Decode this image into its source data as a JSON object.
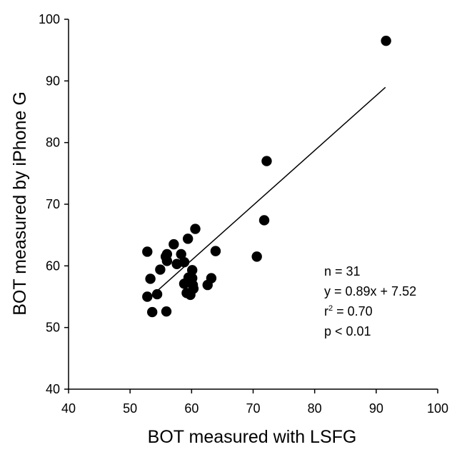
{
  "chart_data": {
    "type": "scatter",
    "xlabel": "BOT measured with LSFG",
    "ylabel": "BOT measured by iPhone G",
    "xlim": [
      40,
      100
    ],
    "ylim": [
      40,
      100
    ],
    "xticks": [
      "40",
      "50",
      "60",
      "70",
      "80",
      "90",
      "100"
    ],
    "yticks": [
      "40",
      "50",
      "60",
      "70",
      "80",
      "90",
      "100"
    ],
    "grid": false,
    "points": [
      {
        "x": 52.8,
        "y": 62.3
      },
      {
        "x": 52.8,
        "y": 55.0
      },
      {
        "x": 53.3,
        "y": 57.9
      },
      {
        "x": 53.6,
        "y": 52.5
      },
      {
        "x": 54.4,
        "y": 55.4
      },
      {
        "x": 54.9,
        "y": 59.4
      },
      {
        "x": 55.8,
        "y": 61.5
      },
      {
        "x": 56.0,
        "y": 61.9
      },
      {
        "x": 55.9,
        "y": 52.6
      },
      {
        "x": 56.0,
        "y": 60.8
      },
      {
        "x": 57.1,
        "y": 63.5
      },
      {
        "x": 57.6,
        "y": 60.3
      },
      {
        "x": 58.3,
        "y": 61.9
      },
      {
        "x": 58.8,
        "y": 60.6
      },
      {
        "x": 58.8,
        "y": 57.1
      },
      {
        "x": 59.2,
        "y": 55.6
      },
      {
        "x": 59.4,
        "y": 64.4
      },
      {
        "x": 59.5,
        "y": 58.1
      },
      {
        "x": 59.8,
        "y": 55.3
      },
      {
        "x": 60.1,
        "y": 59.3
      },
      {
        "x": 60.1,
        "y": 58.0
      },
      {
        "x": 60.2,
        "y": 56.9
      },
      {
        "x": 60.3,
        "y": 56.3
      },
      {
        "x": 60.6,
        "y": 66.0
      },
      {
        "x": 62.6,
        "y": 56.9
      },
      {
        "x": 63.2,
        "y": 58.0
      },
      {
        "x": 63.9,
        "y": 62.4
      },
      {
        "x": 70.6,
        "y": 61.5
      },
      {
        "x": 71.8,
        "y": 67.4
      },
      {
        "x": 72.2,
        "y": 77.0
      },
      {
        "x": 91.6,
        "y": 96.5
      }
    ],
    "fit_line": {
      "slope": 0.89,
      "intercept": 7.52,
      "x_start": 53.0,
      "x_end": 91.5
    },
    "annotations": [
      "n = 31",
      "y = 0.89x + 7.52",
      "r",
      "2",
      " = 0.70",
      "p < 0.01"
    ]
  }
}
